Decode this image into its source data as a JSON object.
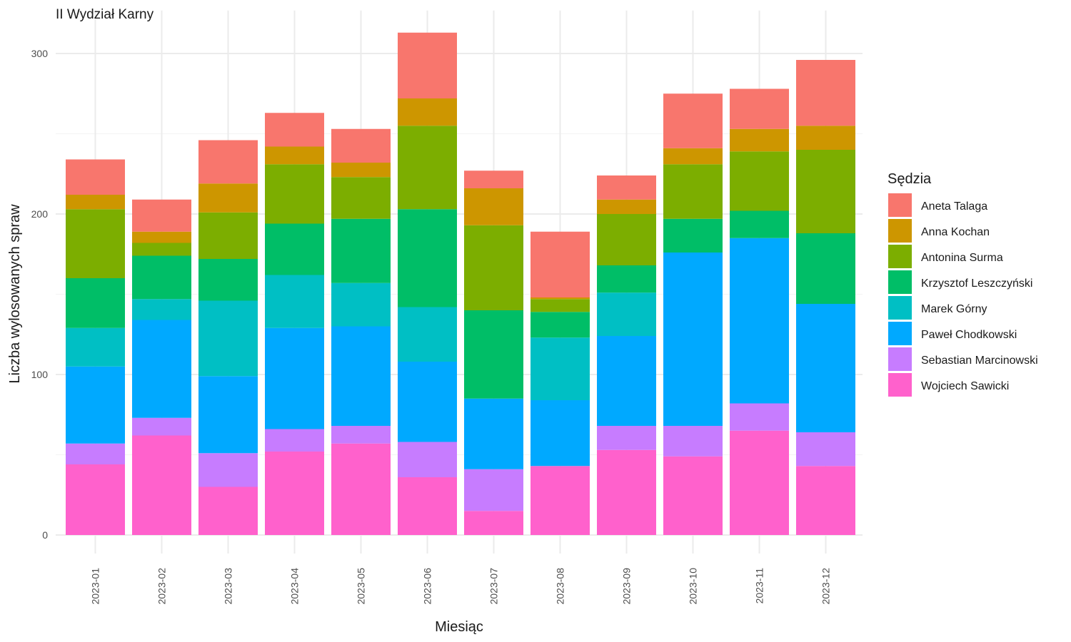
{
  "chart_data": {
    "type": "bar",
    "stacked": true,
    "title": "II Wydział Karny",
    "xlabel": "Miesiąc",
    "ylabel": "Liczba wylosowanych spraw",
    "ylim": [
      0,
      325
    ],
    "yticks": [
      0,
      100,
      200,
      300
    ],
    "grid": true,
    "legend_title": "Sędzia",
    "legend_position": "right",
    "categories": [
      "2023-01",
      "2023-02",
      "2023-03",
      "2023-04",
      "2023-05",
      "2023-06",
      "2023-07",
      "2023-08",
      "2023-09",
      "2023-10",
      "2023-11",
      "2023-12"
    ],
    "series": [
      {
        "name": "Aneta Talaga",
        "color": "#F8766D",
        "values": [
          22,
          20,
          27,
          21,
          21,
          41,
          11,
          41,
          15,
          34,
          25,
          41
        ]
      },
      {
        "name": "Anna Kochan",
        "color": "#CD9600",
        "values": [
          9,
          7,
          18,
          11,
          9,
          17,
          23,
          1,
          9,
          10,
          14,
          15
        ]
      },
      {
        "name": "Antonina Surma",
        "color": "#7CAE00",
        "values": [
          43,
          8,
          29,
          37,
          26,
          52,
          53,
          8,
          32,
          34,
          37,
          52
        ]
      },
      {
        "name": "Krzysztof Leszczyński",
        "color": "#00BE67",
        "values": [
          31,
          27,
          26,
          32,
          40,
          61,
          55,
          16,
          17,
          21,
          17,
          44
        ]
      },
      {
        "name": "Marek Górny",
        "color": "#00BFC4",
        "values": [
          24,
          13,
          47,
          33,
          27,
          34,
          0,
          39,
          27,
          0,
          0,
          0
        ]
      },
      {
        "name": "Paweł Chodkowski",
        "color": "#00A9FF",
        "values": [
          48,
          61,
          48,
          63,
          62,
          50,
          44,
          41,
          56,
          108,
          103,
          80
        ]
      },
      {
        "name": "Sebastian Marcinowski",
        "color": "#C77CFF",
        "values": [
          13,
          11,
          21,
          14,
          11,
          22,
          26,
          0,
          15,
          19,
          17,
          21
        ]
      },
      {
        "name": "Wojciech Sawicki",
        "color": "#FF61CC",
        "values": [
          44,
          62,
          30,
          52,
          57,
          36,
          15,
          43,
          53,
          49,
          65,
          43
        ]
      }
    ]
  }
}
